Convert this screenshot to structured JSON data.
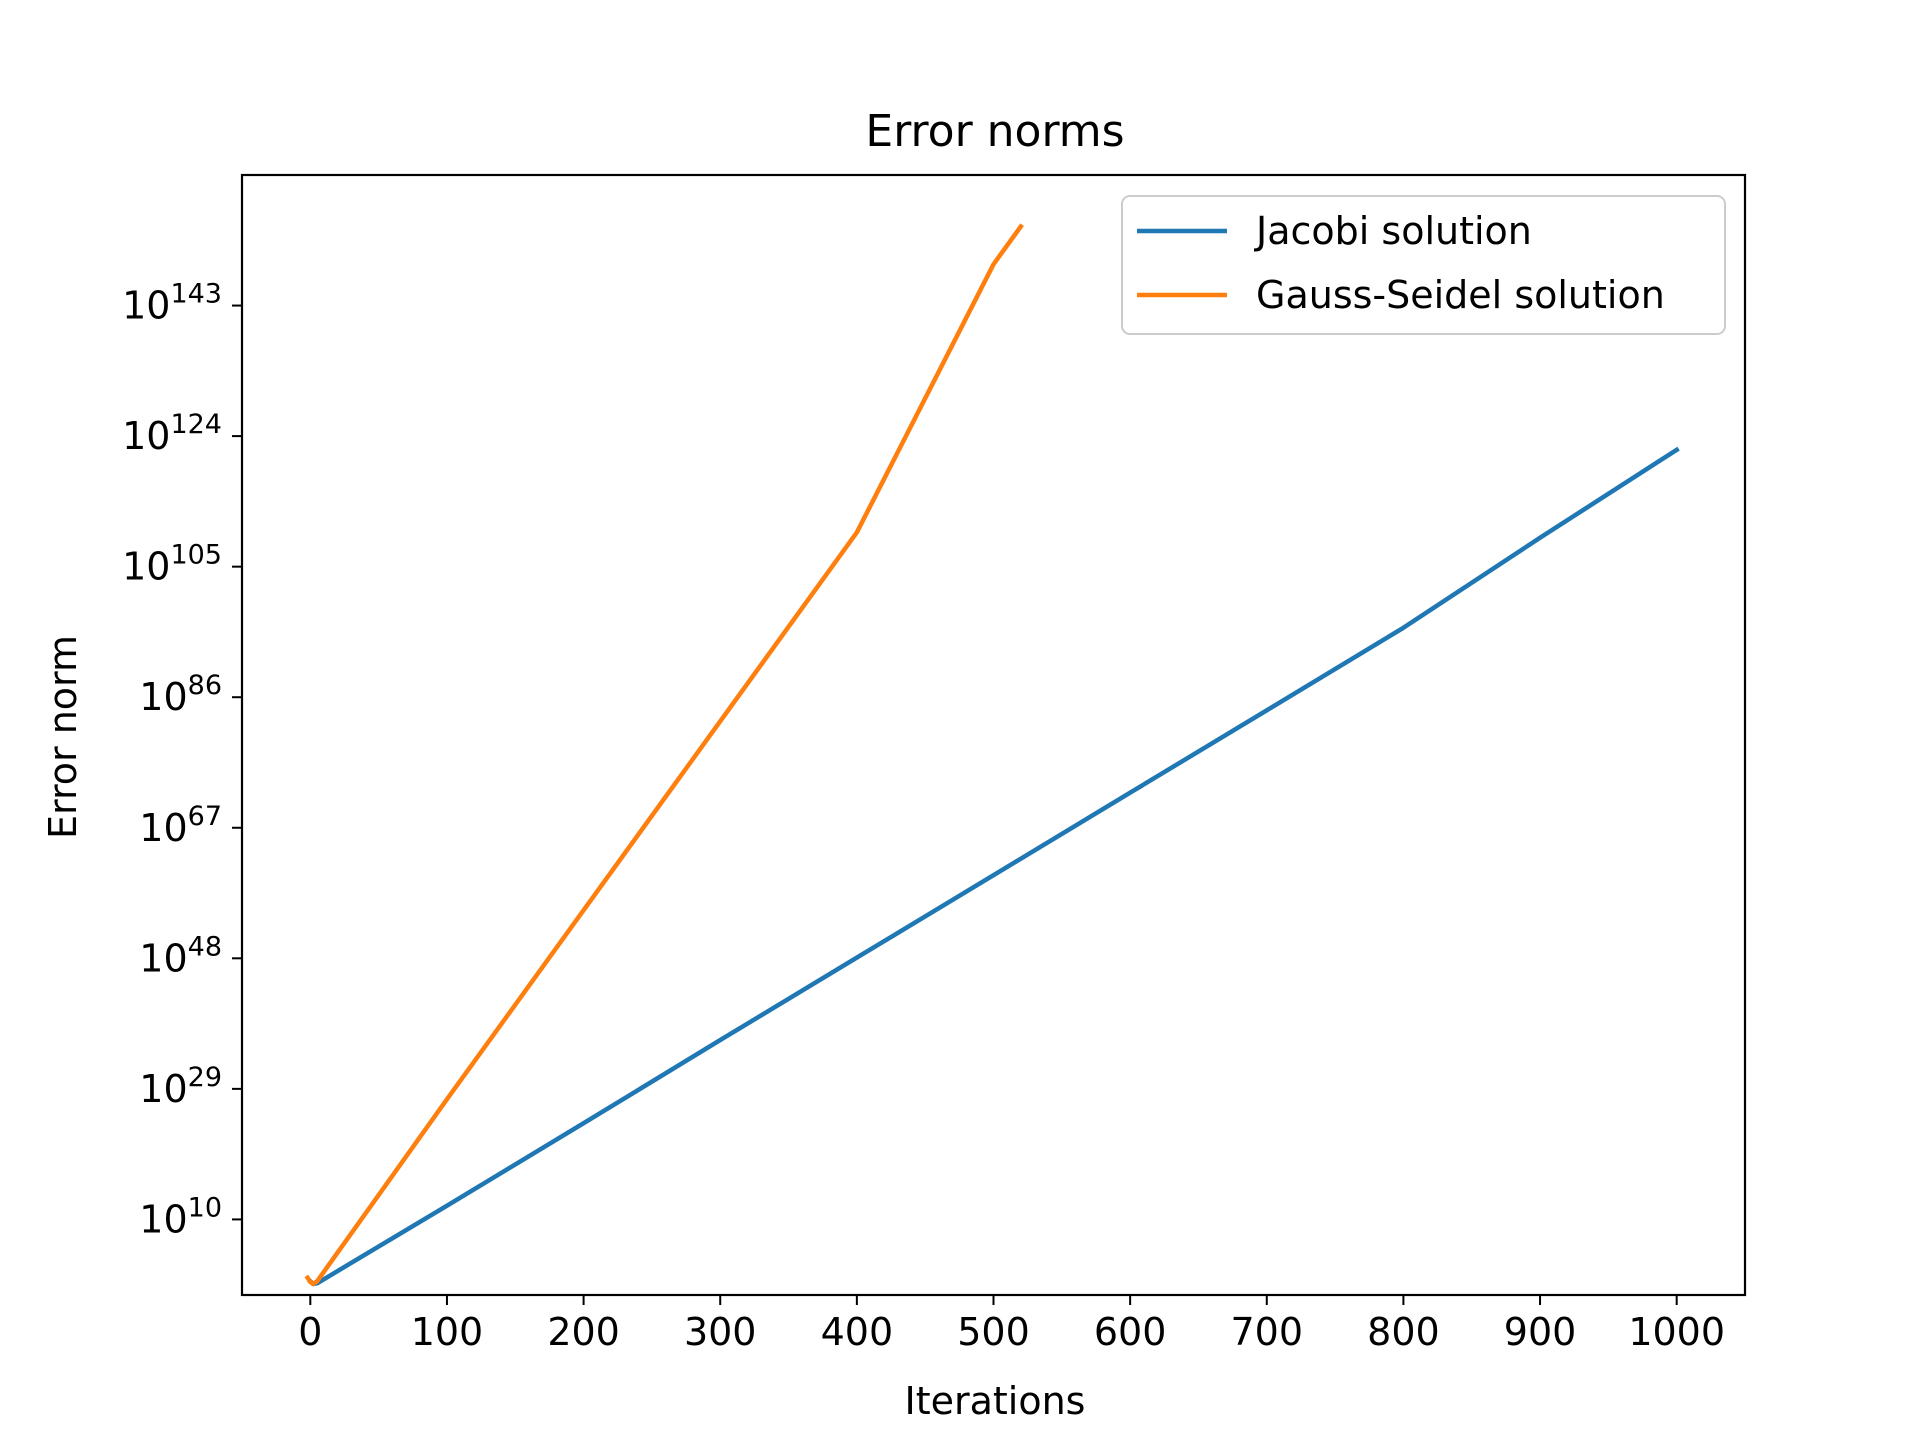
{
  "chart_data": {
    "type": "line",
    "title": "Error norms",
    "xlabel": "Iterations",
    "ylabel": "Error norm",
    "yscale": "log",
    "xlim": [
      -50,
      1050
    ],
    "ylim_exponent": [
      -1,
      162
    ],
    "x_ticks": [
      "0",
      "100",
      "200",
      "300",
      "400",
      "500",
      "600",
      "700",
      "800",
      "900",
      "1000"
    ],
    "x_tick_values": [
      0,
      100,
      200,
      300,
      400,
      500,
      600,
      700,
      800,
      900,
      1000
    ],
    "y_ticks": [
      {
        "base": "10",
        "exp": "10",
        "exponent": 10
      },
      {
        "base": "10",
        "exp": "29",
        "exponent": 29
      },
      {
        "base": "10",
        "exp": "48",
        "exponent": 48
      },
      {
        "base": "10",
        "exp": "67",
        "exponent": 67
      },
      {
        "base": "10",
        "exp": "86",
        "exponent": 86
      },
      {
        "base": "10",
        "exp": "105",
        "exponent": 105
      },
      {
        "base": "10",
        "exp": "124",
        "exponent": 124
      },
      {
        "base": "10",
        "exp": "143",
        "exponent": 143
      }
    ],
    "grid": false,
    "legend_position": "top-right",
    "series": [
      {
        "name": "Jacobi solution",
        "color": "#1f77b4",
        "x": [
          0,
          2,
          5,
          100,
          200,
          300,
          400,
          500,
          600,
          700,
          800,
          900,
          1000
        ],
        "log10_y": [
          1.0,
          0.6,
          0.7,
          12.0,
          24.0,
          36.1,
          48.1,
          60.1,
          72.1,
          84.1,
          96.1,
          109.2,
          122.0
        ]
      },
      {
        "name": "Gauss-Seidel solution",
        "color": "#ff7f0e",
        "x": [
          -2,
          0,
          2,
          5,
          100,
          200,
          300,
          400,
          500,
          520
        ],
        "log10_y": [
          1.5,
          0.9,
          0.6,
          1.0,
          27.5,
          55.0,
          82.5,
          110.0,
          149.0,
          154.5
        ]
      }
    ]
  }
}
